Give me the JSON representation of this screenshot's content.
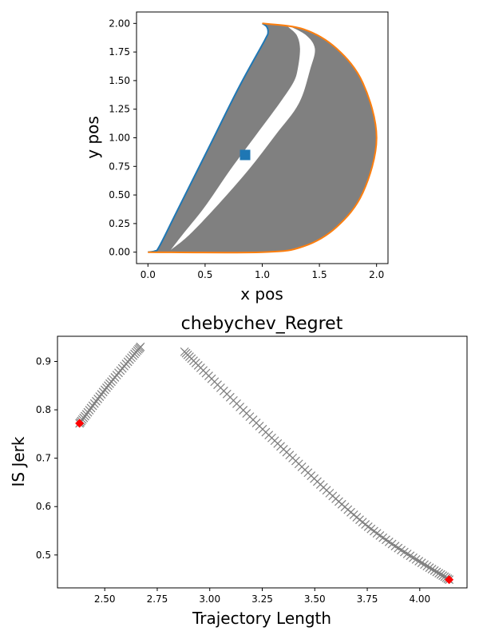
{
  "chart_data": [
    {
      "type": "area",
      "title": "",
      "xlabel": "x pos",
      "ylabel": "y pos",
      "xlim": [
        -0.1,
        2.1
      ],
      "ylim": [
        -0.1,
        2.1
      ],
      "xticks": [
        "0.0",
        "0.5",
        "1.0",
        "1.5",
        "2.0"
      ],
      "yticks": [
        "0.00",
        "0.25",
        "0.50",
        "0.75",
        "1.00",
        "1.25",
        "1.50",
        "1.75",
        "2.00"
      ],
      "colors": {
        "region": "#808080",
        "left_boundary": "#1f77b4",
        "right_boundary": "#ff7f0e",
        "marker": "#1f77b4"
      },
      "grid": false,
      "left_boundary": [
        [
          0.0,
          0.0
        ],
        [
          0.06,
          0.01
        ],
        [
          0.1,
          0.05
        ],
        [
          0.25,
          0.35
        ],
        [
          0.55,
          0.95
        ],
        [
          0.8,
          1.45
        ],
        [
          1.02,
          1.85
        ],
        [
          1.05,
          1.92
        ],
        [
          1.04,
          1.97
        ],
        [
          1.0,
          2.0
        ]
      ],
      "right_boundary": [
        [
          1.0,
          2.0
        ],
        [
          1.36,
          1.95
        ],
        [
          1.65,
          1.78
        ],
        [
          1.88,
          1.48
        ],
        [
          2.0,
          1.0
        ],
        [
          1.88,
          0.52
        ],
        [
          1.65,
          0.22
        ],
        [
          1.36,
          0.05
        ],
        [
          1.0,
          0.0
        ],
        [
          0.0,
          0.0
        ]
      ],
      "inner_white_region": [
        [
          0.2,
          0.02
        ],
        [
          0.36,
          0.15
        ],
        [
          0.6,
          0.4
        ],
        [
          0.88,
          0.72
        ],
        [
          1.12,
          1.03
        ],
        [
          1.32,
          1.3
        ],
        [
          1.42,
          1.6
        ],
        [
          1.46,
          1.78
        ],
        [
          1.38,
          1.9
        ],
        [
          1.22,
          1.98
        ],
        [
          1.3,
          1.9
        ],
        [
          1.33,
          1.78
        ],
        [
          1.31,
          1.6
        ],
        [
          1.27,
          1.48
        ],
        [
          1.15,
          1.3
        ],
        [
          0.95,
          1.03
        ],
        [
          0.72,
          0.72
        ],
        [
          0.5,
          0.4
        ],
        [
          0.3,
          0.15
        ],
        [
          0.2,
          0.02
        ]
      ],
      "marker": {
        "x": 0.85,
        "y": 0.85,
        "shape": "square"
      }
    },
    {
      "type": "scatter",
      "title": "chebychev_Regret",
      "xlabel": "Trajectory Length",
      "ylabel": "IS Jerk",
      "xlim": [
        2.275,
        4.225
      ],
      "ylim": [
        0.432,
        0.952
      ],
      "xticks": [
        "2.50",
        "2.75",
        "3.00",
        "3.25",
        "3.50",
        "3.75",
        "4.00"
      ],
      "yticks": [
        "0.5",
        "0.6",
        "0.7",
        "0.8",
        "0.9"
      ],
      "colors": {
        "points": "#808080",
        "highlight": "#ff0000"
      },
      "grid": false,
      "series": [
        {
          "marker": "x",
          "curve_points": [
            [
              2.38,
              0.772
            ],
            [
              2.52,
              0.852
            ],
            [
              2.67,
              0.93
            ]
          ],
          "count": 40
        },
        {
          "marker": "x",
          "curve_points": [
            [
              2.88,
              0.92
            ],
            [
              3.3,
              0.74
            ],
            [
              3.75,
              0.56
            ],
            [
              4.14,
              0.449
            ]
          ],
          "count": 95
        }
      ],
      "highlight_points": [
        {
          "x": 2.38,
          "y": 0.772
        },
        {
          "x": 4.14,
          "y": 0.449
        }
      ]
    }
  ]
}
